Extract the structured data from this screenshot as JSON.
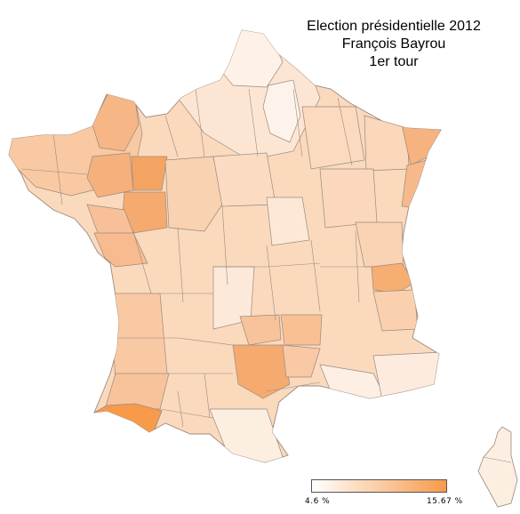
{
  "title": {
    "line1": "Election présidentielle 2012",
    "line2": "François Bayrou",
    "line3": "1er tour"
  },
  "legend": {
    "min_label": "4.6 %",
    "max_label": "15.67 %",
    "min_value": 4.6,
    "max_value": 15.67,
    "min_color": "#ffffff",
    "max_color": "#f79a4a"
  },
  "map": {
    "type": "choropleth",
    "region": "France (départements)",
    "stroke_color": "#9a8a7e",
    "highlight_regions": [
      {
        "name": "Pyrénées-Atlantiques",
        "level": 1.0
      },
      {
        "name": "Sarthe",
        "level": 0.82
      },
      {
        "name": "Maine-et-Loire",
        "level": 0.75
      },
      {
        "name": "Aveyron",
        "level": 0.72
      },
      {
        "name": "Mayenne",
        "level": 0.68
      },
      {
        "name": "Haute-Savoie",
        "level": 0.62
      },
      {
        "name": "Lozère",
        "level": 0.58
      },
      {
        "name": "Cantal",
        "level": 0.55
      },
      {
        "name": "Bas-Rhin",
        "level": 0.55
      },
      {
        "name": "Manche",
        "level": 0.55
      }
    ]
  }
}
